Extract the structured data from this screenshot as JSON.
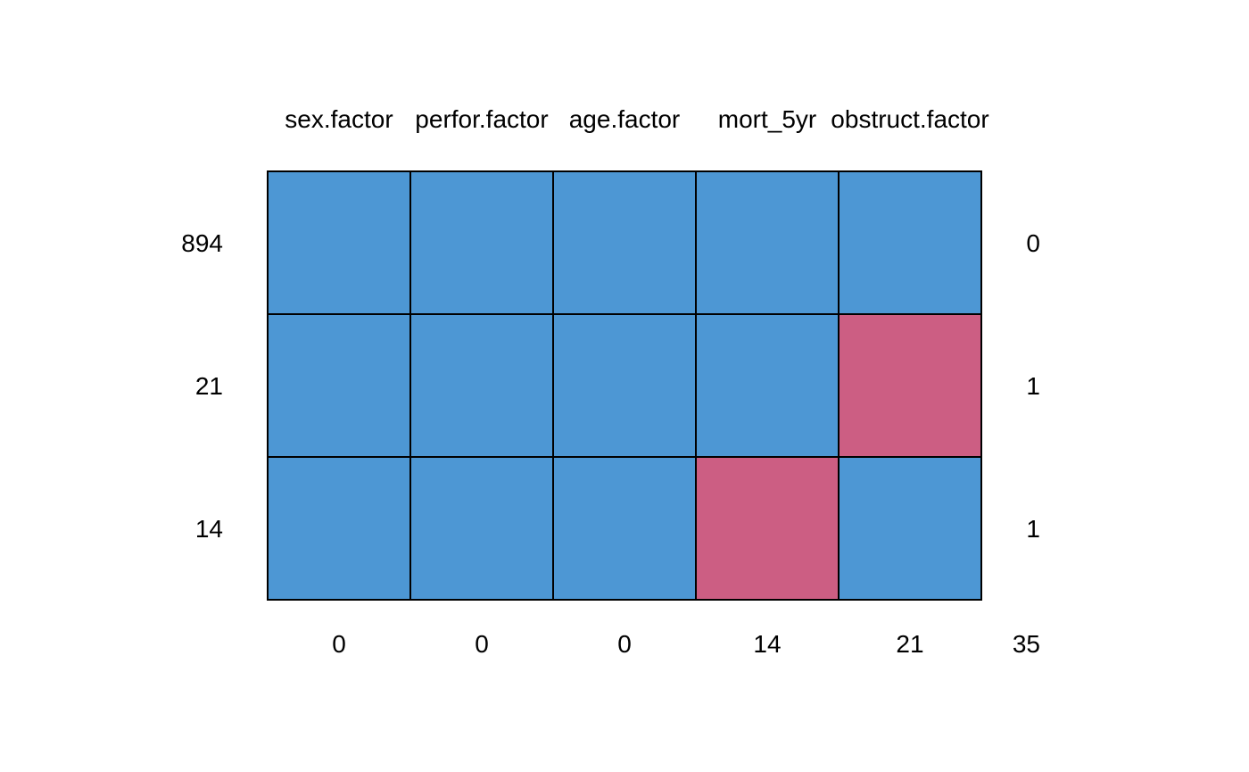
{
  "chart_data": {
    "type": "heatmap",
    "variables": [
      "sex.factor",
      "perfor.factor",
      "age.factor",
      "mort_5yr",
      "obstruct.factor"
    ],
    "patterns": [
      {
        "count": "894",
        "cells": [
          1,
          1,
          1,
          1,
          1
        ],
        "missing_vars": "0"
      },
      {
        "count": "21",
        "cells": [
          1,
          1,
          1,
          1,
          0
        ],
        "missing_vars": "1"
      },
      {
        "count": "14",
        "cells": [
          1,
          1,
          1,
          0,
          1
        ],
        "missing_vars": "1"
      }
    ],
    "column_missing_totals": [
      "0",
      "0",
      "0",
      "14",
      "21"
    ],
    "total_missing": "35",
    "colors": {
      "observed": "#4d97d4",
      "missing": "#cc5e83"
    }
  }
}
